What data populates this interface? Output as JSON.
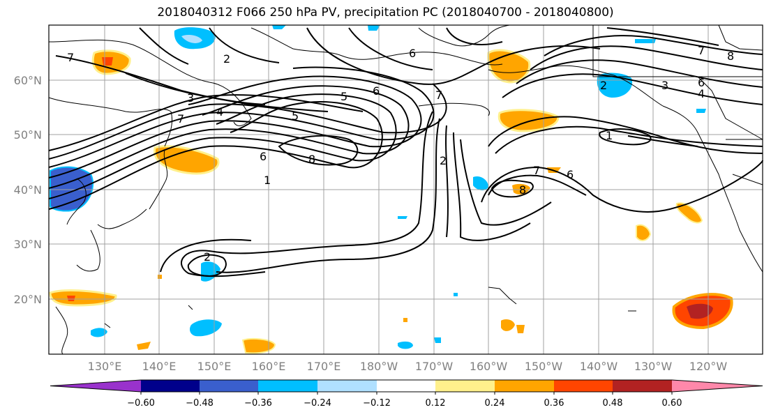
{
  "title": "2018040312 F066 250 hPa PV, precipitation PC (2018040700 - 2018040800)",
  "lat_labels": [
    "60°N",
    "50°N",
    "40°N",
    "30°N",
    "20°N"
  ],
  "lon_labels": [
    "130°E",
    "140°E",
    "150°E",
    "160°E",
    "170°E",
    "180°W",
    "170°W",
    "160°W",
    "150°W",
    "140°W",
    "130°W",
    "120°W"
  ],
  "pv_contour_labels": [
    "7",
    "2",
    "3",
    "4",
    "5",
    "6",
    "8",
    "5",
    "6",
    "7",
    "2",
    "6",
    "7",
    "8",
    "4",
    "2",
    "7",
    "3",
    "6",
    "8",
    "1",
    "6",
    "7",
    "1",
    "2"
  ],
  "colorbar": {
    "ticks": [
      "−0.60",
      "−0.48",
      "−0.36",
      "−0.24",
      "−0.12",
      "0.12",
      "0.24",
      "0.36",
      "0.48",
      "0.60"
    ],
    "colors": [
      "#9932cc",
      "#00008b",
      "#3a5fcd",
      "#00bfff",
      "#b0e0ff",
      "#ffffff",
      "#fff08c",
      "#ffa500",
      "#ff4500",
      "#b22222",
      "#ff88aa"
    ]
  }
}
